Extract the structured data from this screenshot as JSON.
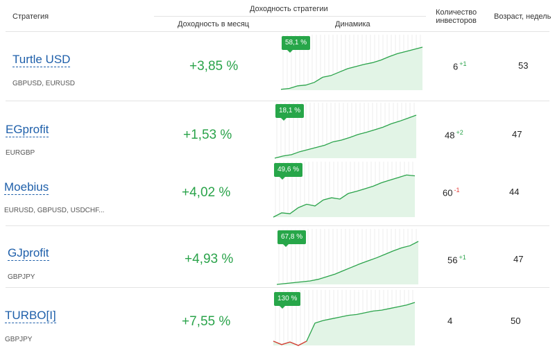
{
  "header": {
    "strategy": "Стратегия",
    "group_title": "Доходность стратегии",
    "monthly": "Доходность в месяц",
    "dynamics": "Динамика",
    "investors": "Количество\nинвесторов",
    "age": "Возраст, недель"
  },
  "colors": {
    "accent": "#27a649",
    "link": "#1e5faa",
    "negative": "#e53935"
  },
  "rows": [
    {
      "name": "Turtle USD",
      "pairs": "GBPUSD, EURUSD",
      "yield": "+3,85 %",
      "badge": "58,1 %",
      "investors": "6",
      "investors_delta": "+1",
      "age": "53"
    },
    {
      "name": "EGprofit",
      "pairs": "EURGBP",
      "yield": "+1,53 %",
      "badge": "18,1 %",
      "investors": "48",
      "investors_delta": "+2",
      "age": "47"
    },
    {
      "name": "Moebius",
      "pairs": "EURUSD, GBPUSD, USDCHF...",
      "yield": "+4,02 %",
      "badge": "49,6 %",
      "investors": "60",
      "investors_delta": "-1",
      "age": "44"
    },
    {
      "name": "GJprofit",
      "pairs": "GBPJPY",
      "yield": "+4,93 %",
      "badge": "67,8 %",
      "investors": "56",
      "investors_delta": "+1",
      "age": "47"
    },
    {
      "name": "TURBO[I]",
      "pairs": "GBPJPY",
      "yield": "+7,55 %",
      "badge": "130 %",
      "investors": "4",
      "investors_delta": "",
      "age": "50"
    }
  ]
}
